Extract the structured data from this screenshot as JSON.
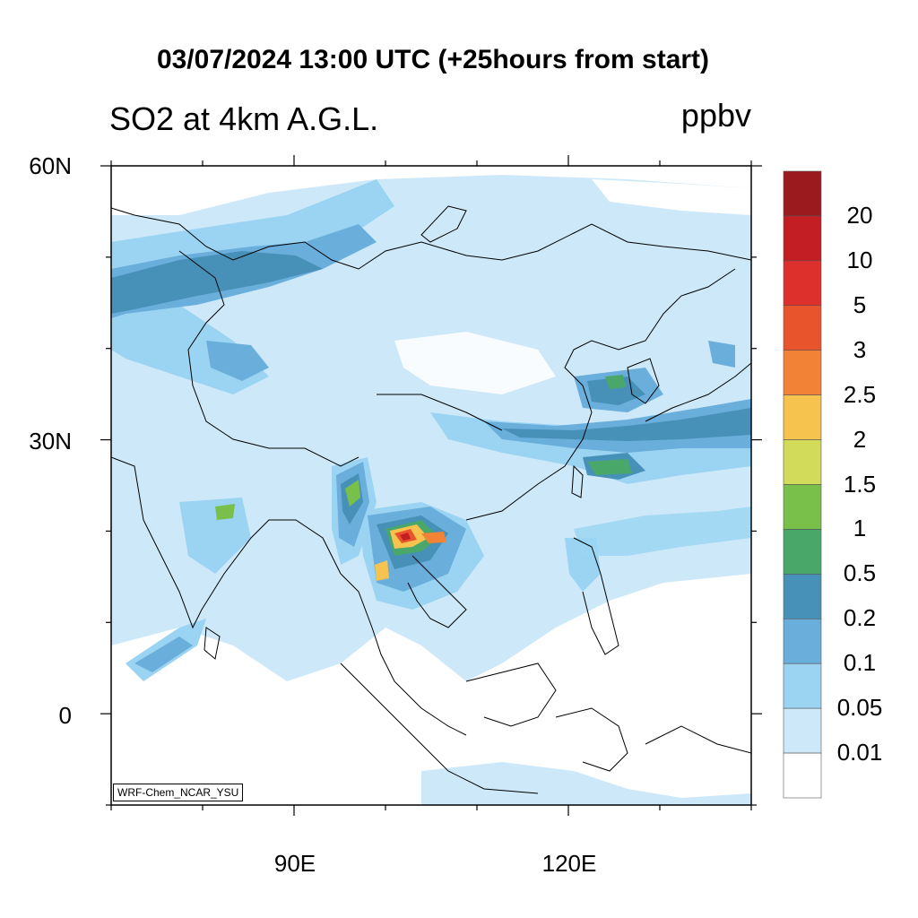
{
  "header": {
    "title": "03/07/2024 13:00 UTC (+25hours from start)",
    "subtitle": "SO2 at 4km A.G.L.",
    "units": "ppbv"
  },
  "axes": {
    "lat_labels": [
      "60N",
      "30N",
      "0"
    ],
    "lat_values": [
      60,
      30,
      0
    ],
    "lon_labels": [
      "90E",
      "120E"
    ],
    "lon_values": [
      90,
      120
    ],
    "lon_range": [
      70,
      140
    ],
    "lat_range": [
      -10,
      60
    ]
  },
  "colorbar": {
    "levels": [
      "20",
      "10",
      "5",
      "3",
      "2.5",
      "2",
      "1.5",
      "1",
      "0.5",
      "0.2",
      "0.1",
      "0.05",
      "0.01"
    ],
    "colors": [
      "#9a1a1e",
      "#c41e25",
      "#dd2f2c",
      "#e8552d",
      "#f28235",
      "#f7c34f",
      "#d2dc5a",
      "#79c04a",
      "#4aa76a",
      "#4791b8",
      "#6aaedc",
      "#9ad4f2",
      "#cde9f9",
      "#ffffff"
    ]
  },
  "credit": "WRF-Chem_NCAR_YSU"
}
